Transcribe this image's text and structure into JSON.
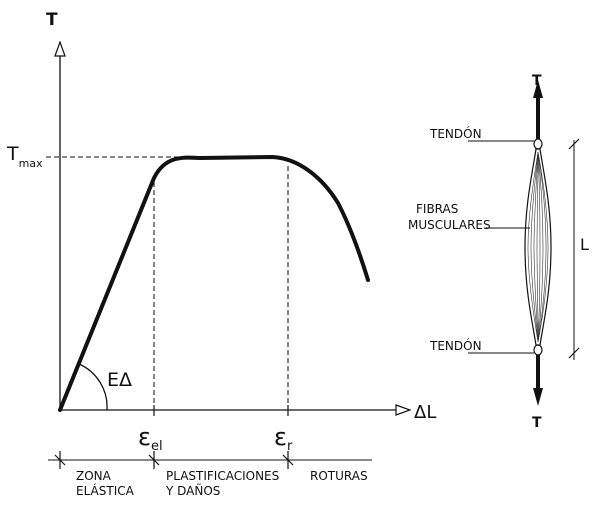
{
  "chart_data": {
    "type": "line",
    "ylabel": "T",
    "xlabel": "ΔL",
    "y_marks": [
      "T",
      "max"
    ],
    "x_marks": [
      {
        "symbol": "ε",
        "sub": "el"
      },
      {
        "symbol": "ε",
        "sub": "r"
      }
    ],
    "slope_label": "EΔ",
    "zones": [
      "ZONA\nELÁSTICA",
      "PLASTIFICACIONES\nY DAÑOS",
      "ROTURAS"
    ]
  },
  "muscle": {
    "top_force": "T",
    "bottom_force": "T",
    "tendon_top": "TENDÓN",
    "tendon_bottom": "TENDÓN",
    "fibers": [
      "FIBRAS",
      "MUSCULARES"
    ],
    "length": "L"
  }
}
